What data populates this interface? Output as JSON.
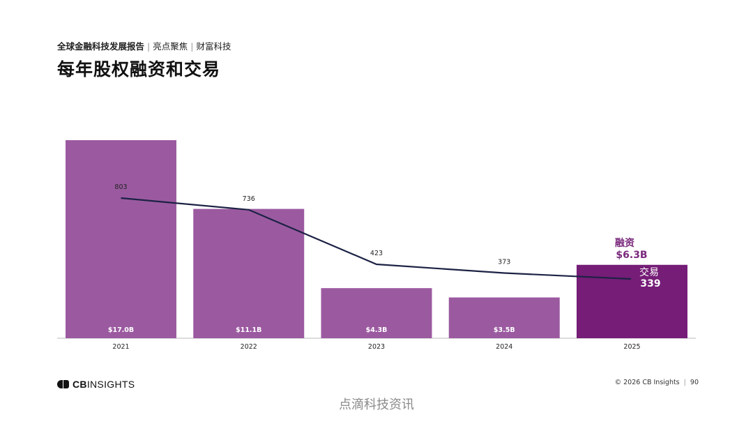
{
  "header": {
    "breadcrumb_main": "全球金融科技发展报告",
    "breadcrumb_sep1": "|",
    "breadcrumb_section": "亮点聚焦",
    "breadcrumb_sep2": "|",
    "breadcrumb_sub": "财富科技",
    "title": "每年股权融资和交易"
  },
  "colors": {
    "bar": "#9b5aa0",
    "bar_highlight": "#751d77",
    "line": "#1c2244",
    "highlight_text": "#7a2a7d"
  },
  "chart_data": {
    "type": "bar",
    "title": "每年股权融资和交易",
    "categories": [
      "2021",
      "2022",
      "2023",
      "2024",
      "2025"
    ],
    "series": [
      {
        "name": "融资",
        "unit": "$B",
        "values": [
          17.0,
          11.1,
          4.3,
          3.5,
          6.3
        ],
        "labels": [
          "$17.0B",
          "$11.1B",
          "$4.3B",
          "$3.5B",
          "$6.3B"
        ]
      },
      {
        "name": "交易",
        "type": "line",
        "values": [
          803,
          736,
          423,
          373,
          339
        ],
        "labels": [
          "803",
          "736",
          "423",
          "373",
          "339"
        ]
      }
    ],
    "funding_ylim": [
      0,
      17.0
    ],
    "deals_ylim": [
      0,
      1100
    ],
    "highlight": {
      "funding_label": "融资",
      "funding_value": "$6.3B",
      "deals_label": "交易",
      "deals_value": "339"
    },
    "xlabel": "",
    "ylabel": ""
  },
  "footer": {
    "logo_bold": "CB",
    "logo_rest": "INSIGHTS",
    "copyright": "© 2026 CB Insights",
    "sep": "|",
    "page_number": "90",
    "watermark": "点滴科技资讯"
  }
}
